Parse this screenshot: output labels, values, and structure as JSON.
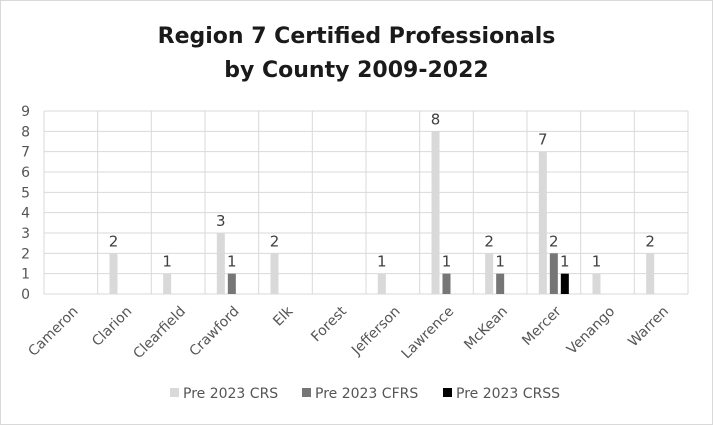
{
  "chart_data": {
    "type": "bar",
    "title_line1": "Region 7 Certified Professionals",
    "title_line2": "by County 2009-2022",
    "categories": [
      "Cameron",
      "Clarion",
      "Clearfield",
      "Crawford",
      "Elk",
      "Forest",
      "Jefferson",
      "Lawrence",
      "McKean",
      "Mercer",
      "Venango",
      "Warren"
    ],
    "series": [
      {
        "name": "Pre 2023 CRS",
        "color": "#d9d9d9",
        "values": [
          0,
          2,
          1,
          3,
          2,
          0,
          1,
          8,
          2,
          7,
          1,
          2
        ]
      },
      {
        "name": "Pre 2023 CFRS",
        "color": "#767676",
        "values": [
          0,
          0,
          0,
          1,
          0,
          0,
          0,
          1,
          1,
          2,
          0,
          0
        ]
      },
      {
        "name": "Pre 2023 CRSS",
        "color": "#000000",
        "values": [
          0,
          0,
          0,
          0,
          0,
          0,
          0,
          0,
          0,
          1,
          0,
          0
        ]
      }
    ],
    "ylim": [
      0,
      9
    ],
    "yticks": [
      0,
      1,
      2,
      3,
      4,
      5,
      6,
      7,
      8,
      9
    ],
    "grid": true,
    "legend_position": "bottom"
  }
}
